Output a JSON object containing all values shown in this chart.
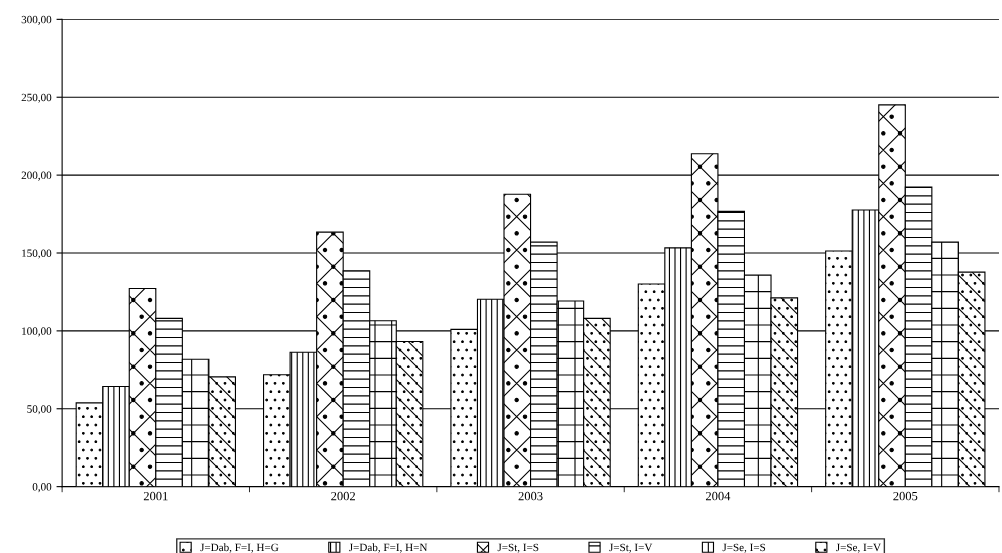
{
  "chart_data": {
    "type": "bar",
    "categories": [
      "2001",
      "2002",
      "2003",
      "2004",
      "2005"
    ],
    "series": [
      {
        "name": "J=Dab, F=I, H=G",
        "color": "#000000",
        "values": [
          53.8,
          71.8,
          101,
          130.1,
          151.3
        ]
      },
      {
        "name": "J=Dab, F=I, H=N",
        "color": "#000000",
        "values": [
          64.3,
          86.3,
          120.3,
          153.3,
          177.6
        ]
      },
      {
        "name": "J=St, I=S",
        "color": "#000000",
        "values": [
          127.2,
          163.4,
          187.7,
          213.7,
          245.1
        ]
      },
      {
        "name": "J=St, I=V",
        "color": "#000000",
        "values": [
          108,
          138.6,
          157,
          176.7,
          192.4
        ]
      },
      {
        "name": "J=Se, I=S",
        "color": "#000000",
        "values": [
          81.8,
          106.5,
          119.2,
          135.9,
          157
        ]
      },
      {
        "name": "J=Se, I=V",
        "color": "#000000",
        "values": [
          70.5,
          93.2,
          108,
          121.2,
          137.7
        ]
      }
    ],
    "ylim": [
      0,
      300
    ],
    "yticks": [
      {
        "value": 0,
        "label": "0,00"
      },
      {
        "value": 50,
        "label": "50,00"
      },
      {
        "value": 100,
        "label": "100,00"
      },
      {
        "value": 150,
        "label": "150,00"
      },
      {
        "value": 200,
        "label": "200,00"
      },
      {
        "value": 250,
        "label": "250,00"
      },
      {
        "value": 300,
        "label": "300,00"
      }
    ],
    "grid": "y",
    "legend": "bottom"
  }
}
